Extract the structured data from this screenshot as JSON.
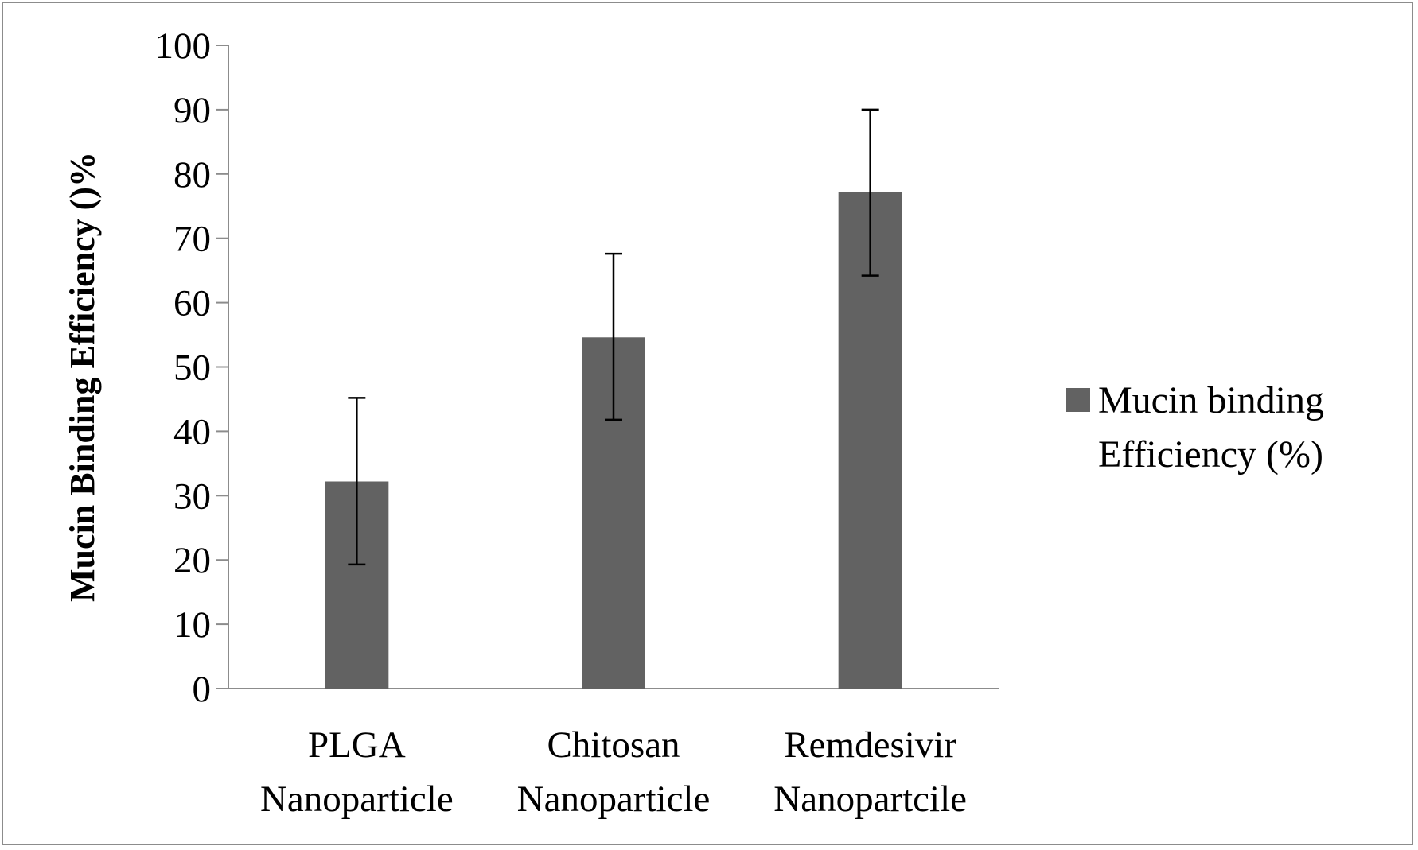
{
  "chart_data": {
    "type": "bar",
    "categories": [
      [
        "PLGA",
        "Nanoparticle"
      ],
      [
        "Chitosan",
        "Nanoparticle"
      ],
      [
        "Remdesivir",
        "Nanopartcile"
      ]
    ],
    "series": [
      {
        "name": "Mucin binding Efficiency (%)",
        "legend_lines": [
          "Mucin binding",
          "Efficiency (%)"
        ],
        "values": [
          32.2,
          54.6,
          77.2
        ],
        "error_low": [
          19.3,
          41.8,
          64.2
        ],
        "error_high": [
          45.2,
          67.6,
          90.0
        ],
        "color": "#626262"
      }
    ],
    "title": "",
    "xlabel": "",
    "ylabel": "Mucin Binding Efficiency ()%",
    "ylim": [
      0,
      100
    ],
    "yticks": [
      "0",
      "10",
      "20",
      "30",
      "40",
      "50",
      "60",
      "70",
      "80",
      "90",
      "100"
    ],
    "grid": false,
    "legend_position": "right"
  }
}
